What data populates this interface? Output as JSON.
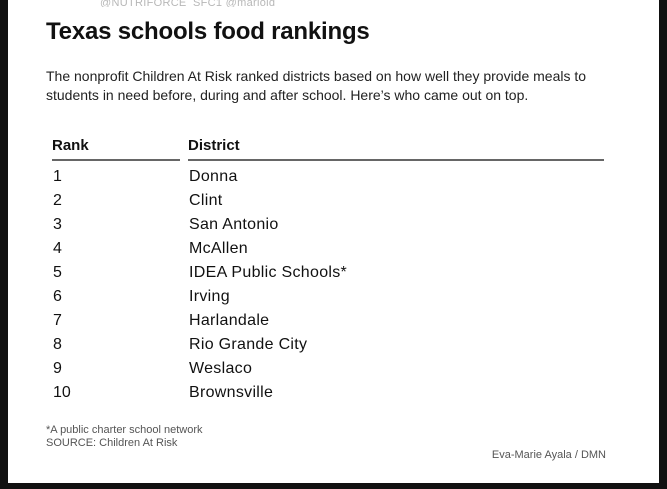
{
  "top_strip": "@NUTRIFORCE_SFC1 @marioid",
  "title": "Texas schools food rankings",
  "intro": "The nonprofit Children At Risk ranked districts based on how well they provide meals to students in need before, during and after school. Here’s who came out on top.",
  "table": {
    "headers": {
      "rank": "Rank",
      "district": "District"
    },
    "rows": [
      {
        "rank": "1",
        "district": "Donna"
      },
      {
        "rank": "2",
        "district": "Clint"
      },
      {
        "rank": "3",
        "district": "San Antonio"
      },
      {
        "rank": "4",
        "district": "McAllen"
      },
      {
        "rank": "5",
        "district": "IDEA Public Schools*"
      },
      {
        "rank": "6",
        "district": "Irving"
      },
      {
        "rank": "7",
        "district": "Harlandale"
      },
      {
        "rank": "8",
        "district": "Rio Grande City"
      },
      {
        "rank": "9",
        "district": "Weslaco"
      },
      {
        "rank": "10",
        "district": "Brownsville"
      }
    ]
  },
  "footnote": {
    "note": "*A public charter school network",
    "source": "SOURCE: Children At Risk"
  },
  "credit": "Eva-Marie Ayala / DMN"
}
